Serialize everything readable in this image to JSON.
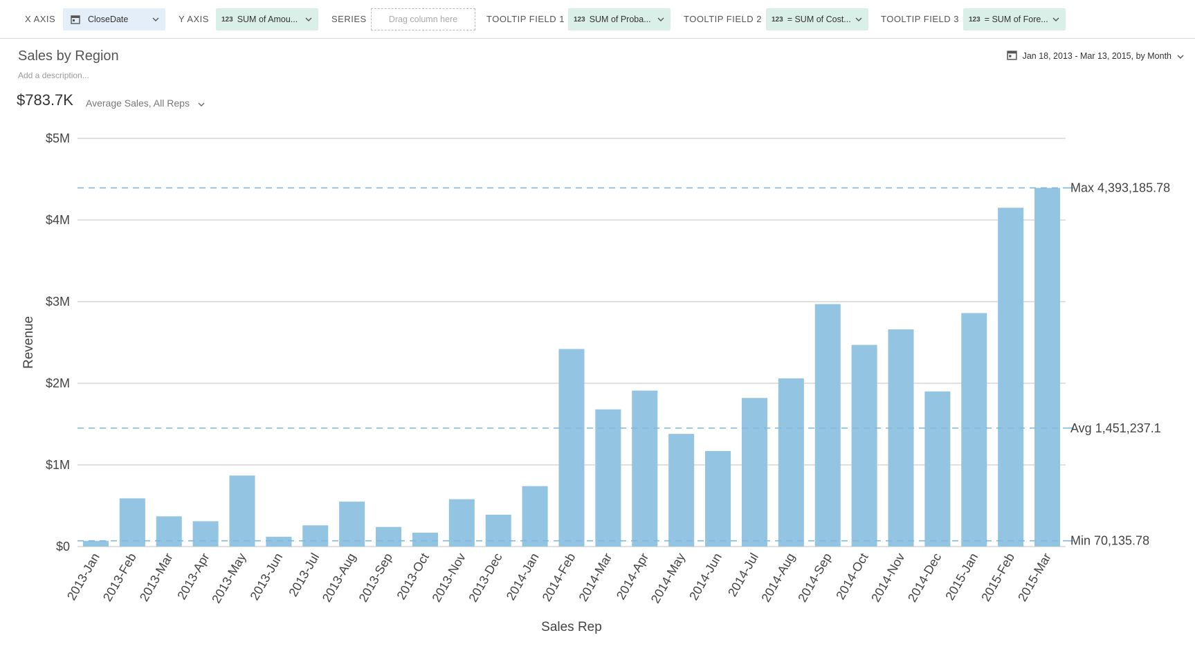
{
  "toolbar": {
    "x_axis_label": "X AXIS",
    "x_axis_value": "CloseDate",
    "y_axis_label": "Y AXIS",
    "y_axis_value": "SUM of Amou...",
    "series_label": "SERIES",
    "series_placeholder": "Drag column here",
    "tooltip1_label": "TOOLTIP FIELD 1",
    "tooltip1_value": "SUM of Proba...",
    "tooltip2_label": "TOOLTIP FIELD 2",
    "tooltip2_value": "= SUM of Cost...",
    "tooltip3_label": "TOOLTIP FIELD 3",
    "tooltip3_value": "= SUM of Fore...",
    "number_icon_text": "123"
  },
  "header": {
    "title": "Sales by Region",
    "description_placeholder": "Add a description...",
    "metric_value": "$783.7K",
    "metric_label": "Average Sales, All Reps",
    "date_range": "Jan 18, 2013 - Mar 13, 2015, by Month"
  },
  "colors": {
    "bar": "#93c4e2",
    "reference_line": "#7fb8de",
    "grid": "#d6d6d6",
    "date_pill": "#e3eef9",
    "number_pill": "#d9efe8"
  },
  "chart_data": {
    "type": "bar",
    "title": "",
    "xlabel": "Sales Rep",
    "ylabel": "Revenue",
    "ylim": [
      0,
      5000000
    ],
    "yticks": [
      0,
      1000000,
      2000000,
      3000000,
      4000000,
      5000000
    ],
    "ytick_labels": [
      "$0",
      "$1M",
      "$2M",
      "$3M",
      "$4M",
      "$5M"
    ],
    "grid": true,
    "categories": [
      "2013-Jan",
      "2013-Feb",
      "2013-Mar",
      "2013-Apr",
      "2013-May",
      "2013-Jun",
      "2013-Jul",
      "2013-Aug",
      "2013-Sep",
      "2013-Oct",
      "2013-Nov",
      "2013-Dec",
      "2014-Jan",
      "2014-Feb",
      "2014-Mar",
      "2014-Apr",
      "2014-May",
      "2014-Jun",
      "2014-Jul",
      "2014-Aug",
      "2014-Sep",
      "2014-Oct",
      "2014-Nov",
      "2014-Dec",
      "2015-Jan",
      "2015-Feb",
      "2015-Mar"
    ],
    "values": [
      70135.78,
      590000,
      370000,
      310000,
      870000,
      120000,
      260000,
      550000,
      240000,
      170000,
      580000,
      390000,
      740000,
      2420000,
      1680000,
      1910000,
      1380000,
      1170000,
      1820000,
      2060000,
      2970000,
      2470000,
      2660000,
      1900000,
      2860000,
      4150000,
      4393185.78
    ],
    "reference_lines": [
      {
        "label": "Max 4,393,185.78",
        "value": 4393185.78
      },
      {
        "label": "Avg 1,451,237.1",
        "value": 1451237.1
      },
      {
        "label": "Min 70,135.78",
        "value": 70135.78
      }
    ]
  }
}
